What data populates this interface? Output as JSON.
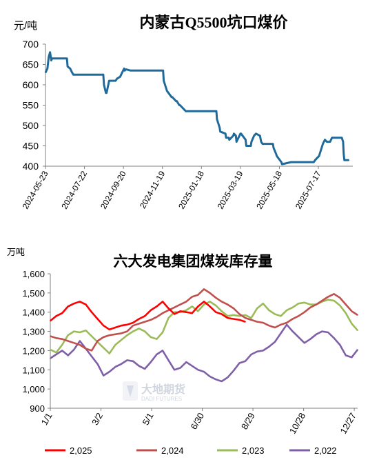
{
  "chart_data": [
    {
      "type": "line",
      "title": "内蒙古Q5500坑口煤价",
      "ylabel": "元/吨",
      "ylim": [
        400,
        700
      ],
      "yticks": [
        400,
        450,
        500,
        550,
        600,
        650,
        700
      ],
      "xlim": [
        "2024-05-23",
        "2025-09-08"
      ],
      "x_tick_labels": [
        "2024-05-23",
        "2024-07-22",
        "2024-09-20",
        "2024-11-19",
        "2025-01-18",
        "2025-03-19",
        "2025-05-18",
        "2025-07-17"
      ],
      "grid": false,
      "legend": "none",
      "color": "#1f6a9a",
      "series": [
        {
          "x": [
            "2024-05-23",
            "2024-05-26",
            "2024-05-28",
            "2024-05-30",
            "2024-06-01",
            "2024-06-02",
            "2024-06-04",
            "2024-06-06",
            "2024-06-25",
            "2024-06-26",
            "2024-06-30",
            "2024-07-03",
            "2024-07-05",
            "2024-08-20",
            "2024-08-21",
            "2024-08-24",
            "2024-08-25",
            "2024-08-29",
            "2024-09-08",
            "2024-09-10",
            "2024-09-15",
            "2024-09-21",
            "2024-09-22",
            "2024-09-24",
            "2024-10-01",
            "2024-10-10",
            "2024-11-20",
            "2024-11-21",
            "2024-11-25",
            "2024-11-26",
            "2024-12-03",
            "2024-12-04",
            "2024-12-10",
            "2024-12-11",
            "2024-12-15",
            "2024-12-16",
            "2024-12-25",
            "2025-01-15",
            "2025-02-10",
            "2025-02-11",
            "2025-02-15",
            "2025-02-16",
            "2025-02-24",
            "2025-02-25",
            "2025-03-01",
            "2025-03-02",
            "2025-03-08",
            "2025-03-09",
            "2025-03-12",
            "2025-03-13",
            "2025-03-19",
            "2025-03-20",
            "2025-03-27",
            "2025-03-28",
            "2025-04-04",
            "2025-04-05",
            "2025-04-09",
            "2025-04-12",
            "2025-04-18",
            "2025-04-20",
            "2025-04-22",
            "2025-05-08",
            "2025-05-09",
            "2025-05-13",
            "2025-05-14",
            "2025-05-21",
            "2025-05-22",
            "2025-06-05",
            "2025-06-25",
            "2025-07-10",
            "2025-07-12",
            "2025-07-15",
            "2025-07-18",
            "2025-07-21",
            "2025-07-24",
            "2025-07-27",
            "2025-07-30",
            "2025-08-04",
            "2025-08-07",
            "2025-08-11",
            "2025-08-18",
            "2025-08-22",
            "2025-08-24",
            "2025-08-25",
            "2025-08-26",
            "2025-09-02"
          ],
          "y": [
            630,
            640,
            668,
            680,
            660,
            665,
            665,
            665,
            665,
            645,
            640,
            630,
            625,
            625,
            600,
            580,
            580,
            610,
            610,
            615,
            620,
            640,
            635,
            638,
            635,
            635,
            635,
            610,
            590,
            585,
            570,
            570,
            560,
            560,
            550,
            550,
            535,
            535,
            535,
            515,
            495,
            485,
            480,
            470,
            470,
            465,
            475,
            480,
            475,
            460,
            480,
            480,
            465,
            450,
            450,
            460,
            475,
            480,
            475,
            460,
            455,
            455,
            445,
            430,
            425,
            410,
            405,
            410,
            410,
            410,
            415,
            420,
            425,
            440,
            455,
            465,
            460,
            460,
            470,
            470,
            470,
            470,
            460,
            430,
            415,
            415
          ]
        }
      ]
    },
    {
      "type": "line",
      "title": "六大发电集团煤炭库存量",
      "ylabel": "万吨",
      "ylim": [
        900,
        1600
      ],
      "yticks": [
        "900",
        "1,000",
        "1,100",
        "1,200",
        "1,300",
        "1,400",
        "1,500",
        "1,600"
      ],
      "x_tick_labels": [
        "1/1",
        "3/2",
        "5/1",
        "6/30",
        "8/29",
        "10/28",
        "12/27"
      ],
      "xlim": [
        1,
        365
      ],
      "grid": false,
      "legend": "bottom",
      "series": [
        {
          "name": "2,025",
          "color": "#ff0000",
          "x": [
            1,
            8,
            15,
            22,
            29,
            36,
            43,
            50,
            57,
            64,
            71,
            78,
            85,
            92,
            99,
            106,
            113,
            120,
            127,
            134,
            141,
            148,
            155,
            162,
            169,
            176,
            183,
            190,
            197,
            204,
            211,
            218,
            225,
            232
          ],
          "y": [
            1355,
            1380,
            1395,
            1430,
            1445,
            1455,
            1440,
            1400,
            1365,
            1330,
            1310,
            1320,
            1330,
            1335,
            1345,
            1365,
            1380,
            1410,
            1430,
            1455,
            1420,
            1390,
            1405,
            1400,
            1395,
            1430,
            1455,
            1430,
            1400,
            1390,
            1370,
            1365,
            1360,
            1350
          ]
        },
        {
          "name": "2,024",
          "color": "#c0504d",
          "x": [
            1,
            8,
            15,
            22,
            29,
            36,
            43,
            50,
            57,
            64,
            71,
            78,
            85,
            92,
            99,
            106,
            113,
            120,
            127,
            134,
            141,
            148,
            155,
            162,
            169,
            176,
            183,
            190,
            197,
            204,
            211,
            218,
            225,
            232,
            239,
            246,
            253,
            260,
            267,
            274,
            281,
            288,
            295,
            302,
            309,
            316,
            323,
            330,
            337,
            344,
            351,
            358,
            365
          ],
          "y": [
            1275,
            1265,
            1260,
            1250,
            1240,
            1230,
            1210,
            1200,
            1250,
            1270,
            1280,
            1285,
            1290,
            1300,
            1330,
            1340,
            1350,
            1360,
            1375,
            1395,
            1410,
            1425,
            1440,
            1455,
            1480,
            1490,
            1520,
            1500,
            1475,
            1455,
            1440,
            1420,
            1390,
            1370,
            1360,
            1350,
            1345,
            1330,
            1320,
            1335,
            1345,
            1365,
            1380,
            1400,
            1425,
            1440,
            1460,
            1480,
            1495,
            1475,
            1440,
            1405,
            1385
          ]
        },
        {
          "name": "2,023",
          "color": "#9bbb59",
          "x": [
            1,
            8,
            15,
            22,
            29,
            36,
            43,
            50,
            57,
            64,
            71,
            78,
            85,
            92,
            99,
            106,
            113,
            120,
            127,
            134,
            141,
            148,
            155,
            162,
            169,
            176,
            183,
            190,
            197,
            204,
            211,
            218,
            225,
            232,
            239,
            246,
            253,
            260,
            267,
            274,
            281,
            288,
            295,
            302,
            309,
            316,
            323,
            330,
            337,
            344,
            351,
            358,
            365
          ],
          "y": [
            1205,
            1190,
            1230,
            1280,
            1300,
            1295,
            1305,
            1275,
            1245,
            1215,
            1185,
            1230,
            1255,
            1280,
            1300,
            1315,
            1300,
            1270,
            1260,
            1295,
            1370,
            1400,
            1400,
            1410,
            1430,
            1405,
            1440,
            1455,
            1435,
            1405,
            1380,
            1385,
            1380,
            1385,
            1370,
            1420,
            1445,
            1410,
            1390,
            1380,
            1410,
            1425,
            1445,
            1450,
            1440,
            1440,
            1455,
            1465,
            1460,
            1435,
            1395,
            1340,
            1305
          ]
        },
        {
          "name": "2,022",
          "color": "#7f5fa8",
          "x": [
            1,
            8,
            15,
            22,
            29,
            36,
            43,
            50,
            57,
            64,
            71,
            78,
            85,
            92,
            99,
            106,
            113,
            120,
            127,
            134,
            141,
            148,
            155,
            162,
            169,
            176,
            183,
            190,
            197,
            204,
            211,
            218,
            225,
            232,
            239,
            246,
            253,
            260,
            267,
            274,
            281,
            288,
            295,
            302,
            309,
            316,
            323,
            330,
            337,
            344,
            351,
            358,
            365
          ],
          "y": [
            1160,
            1180,
            1200,
            1175,
            1205,
            1250,
            1210,
            1170,
            1130,
            1070,
            1090,
            1115,
            1130,
            1150,
            1145,
            1120,
            1105,
            1140,
            1180,
            1200,
            1150,
            1100,
            1110,
            1140,
            1120,
            1100,
            1090,
            1065,
            1050,
            1040,
            1060,
            1095,
            1135,
            1145,
            1180,
            1195,
            1200,
            1220,
            1245,
            1290,
            1335,
            1300,
            1270,
            1240,
            1260,
            1285,
            1300,
            1295,
            1265,
            1230,
            1175,
            1165,
            1205
          ]
        }
      ]
    }
  ],
  "watermark": {
    "name": "大地期货",
    "subtitle": "DADI FUTURES"
  }
}
